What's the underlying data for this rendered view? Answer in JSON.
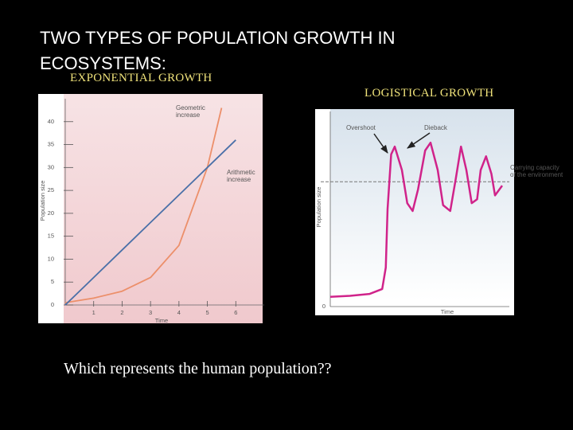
{
  "slide": {
    "title": "TWO TYPES OF POPULATION GROWTH IN ECOSYSTEMS:",
    "question": "Which represents the human population??"
  },
  "chart_data": [
    {
      "type": "line",
      "title": "EXPONENTIAL GROWTH",
      "x_label": "Time",
      "y_label": "Population size",
      "x": [
        0,
        1,
        2,
        3,
        4,
        5,
        5.5,
        6
      ],
      "series": [
        {
          "name": "Geometric increase",
          "color": "#ec8f6a",
          "values": [
            0.5,
            1.5,
            3,
            6,
            13,
            30,
            43,
            null
          ]
        },
        {
          "name": "Arithmetic increase",
          "color": "#4a70a8",
          "values": [
            0,
            6,
            12,
            18,
            24,
            30,
            33,
            36
          ]
        }
      ],
      "xlim": [
        0,
        7
      ],
      "ylim": [
        0,
        45
      ],
      "xticks": [
        1,
        2,
        3,
        4,
        5,
        6
      ],
      "yticks": [
        0,
        5,
        10,
        15,
        20,
        25,
        30,
        35,
        40
      ]
    },
    {
      "type": "line",
      "title": "LOGISTICAL GROWTH",
      "x_label": "Time",
      "y_label": "Population size",
      "x": [
        0,
        11,
        22,
        29,
        31,
        32,
        34,
        36,
        40,
        43,
        46,
        49,
        53,
        56,
        60,
        63,
        67,
        70,
        73,
        76,
        79,
        82,
        84,
        87,
        90,
        92,
        96
      ],
      "series": [
        {
          "color": "#d0238a",
          "values": [
            5,
            5.5,
            6.5,
            9,
            20,
            50,
            78,
            82,
            70,
            53,
            49,
            60,
            80,
            84,
            70,
            52,
            49,
            65,
            82,
            70,
            53,
            55,
            70,
            77,
            68,
            57,
            62
          ]
        }
      ],
      "carrying_capacity": 64,
      "annotations": [
        "Overshoot",
        "Dieback",
        "Carrying capacity of the environment"
      ],
      "xlim": [
        0,
        100
      ],
      "ylim": [
        0,
        100
      ],
      "yticks": [
        0
      ]
    }
  ]
}
